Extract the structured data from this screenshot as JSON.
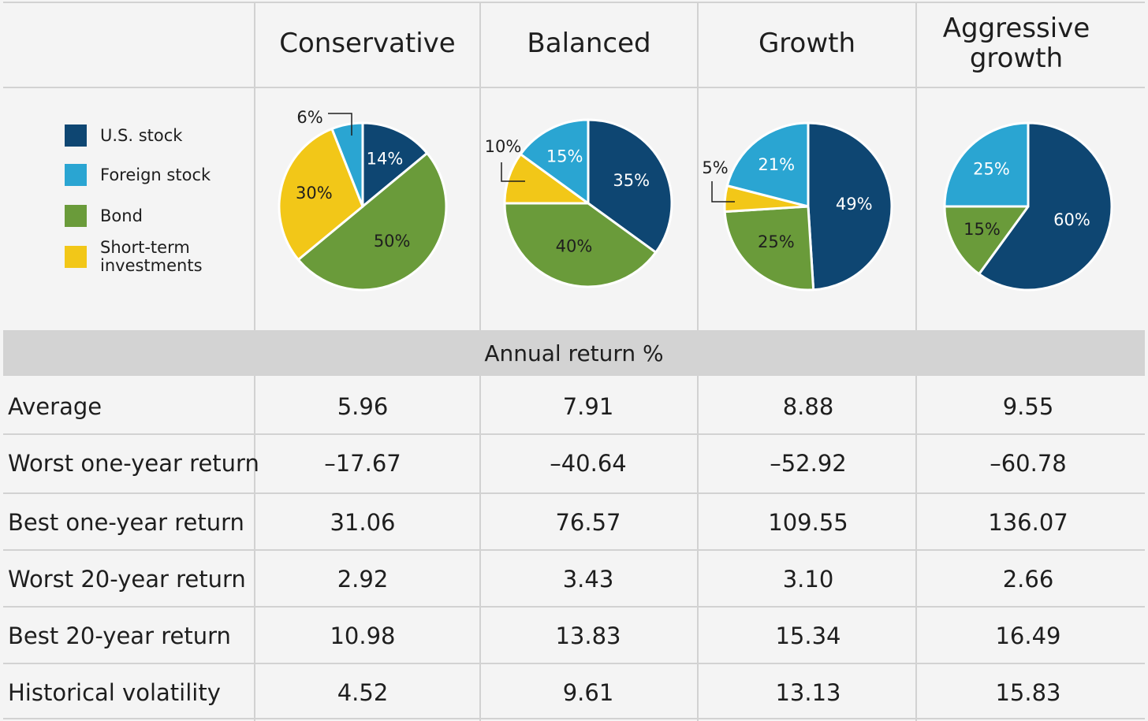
{
  "columns": [
    "Conservative",
    "Balanced",
    "Growth",
    "Aggressive growth"
  ],
  "legend": [
    {
      "label": "U.S. stock",
      "color": "#0e4672"
    },
    {
      "label": "Foreign stock",
      "color": "#2aa5d2"
    },
    {
      "label": "Bond",
      "color": "#6a9b3a"
    },
    {
      "label": "Short-term investments",
      "color": "#f2c718"
    }
  ],
  "section_header": "Annual return %",
  "chart_data": [
    {
      "type": "pie",
      "title": "Conservative",
      "categories": [
        "U.S. stock",
        "Bond",
        "Short-term investments",
        "Foreign stock"
      ],
      "values": [
        14,
        50,
        30,
        6
      ],
      "labels": [
        "14%",
        "50%",
        "30%",
        "6%"
      ]
    },
    {
      "type": "pie",
      "title": "Balanced",
      "categories": [
        "U.S. stock",
        "Bond",
        "Short-term investments",
        "Foreign stock"
      ],
      "values": [
        35,
        40,
        10,
        15
      ],
      "labels": [
        "35%",
        "40%",
        "10%",
        "15%"
      ]
    },
    {
      "type": "pie",
      "title": "Growth",
      "categories": [
        "U.S. stock",
        "Bond",
        "Short-term investments",
        "Foreign stock"
      ],
      "values": [
        49,
        25,
        5,
        21
      ],
      "labels": [
        "49%",
        "25%",
        "5%",
        "21%"
      ]
    },
    {
      "type": "pie",
      "title": "Aggressive growth",
      "categories": [
        "U.S. stock",
        "Bond",
        "Foreign stock"
      ],
      "values": [
        60,
        15,
        25
      ],
      "labels": [
        "60%",
        "15%",
        "25%"
      ]
    },
    {
      "type": "table",
      "title": "Annual return %",
      "columns": [
        "Conservative",
        "Balanced",
        "Growth",
        "Aggressive growth"
      ],
      "rows": [
        {
          "label": "Average",
          "values": [
            "5.96",
            "7.91",
            "8.88",
            "9.55"
          ]
        },
        {
          "label": "Worst one-year return",
          "values": [
            "–17.67",
            "–40.64",
            "–52.92",
            "–60.78"
          ]
        },
        {
          "label": "Best one-year return",
          "values": [
            "31.06",
            "76.57",
            "109.55",
            "136.07"
          ]
        },
        {
          "label": "Worst 20-year return",
          "values": [
            "2.92",
            "3.43",
            "3.10",
            "2.66"
          ]
        },
        {
          "label": "Best 20-year return",
          "values": [
            "10.98",
            "13.83",
            "15.34",
            "16.49"
          ]
        },
        {
          "label": "Historical volatility",
          "values": [
            "4.52",
            "9.61",
            "13.13",
            "15.83"
          ]
        }
      ]
    }
  ]
}
